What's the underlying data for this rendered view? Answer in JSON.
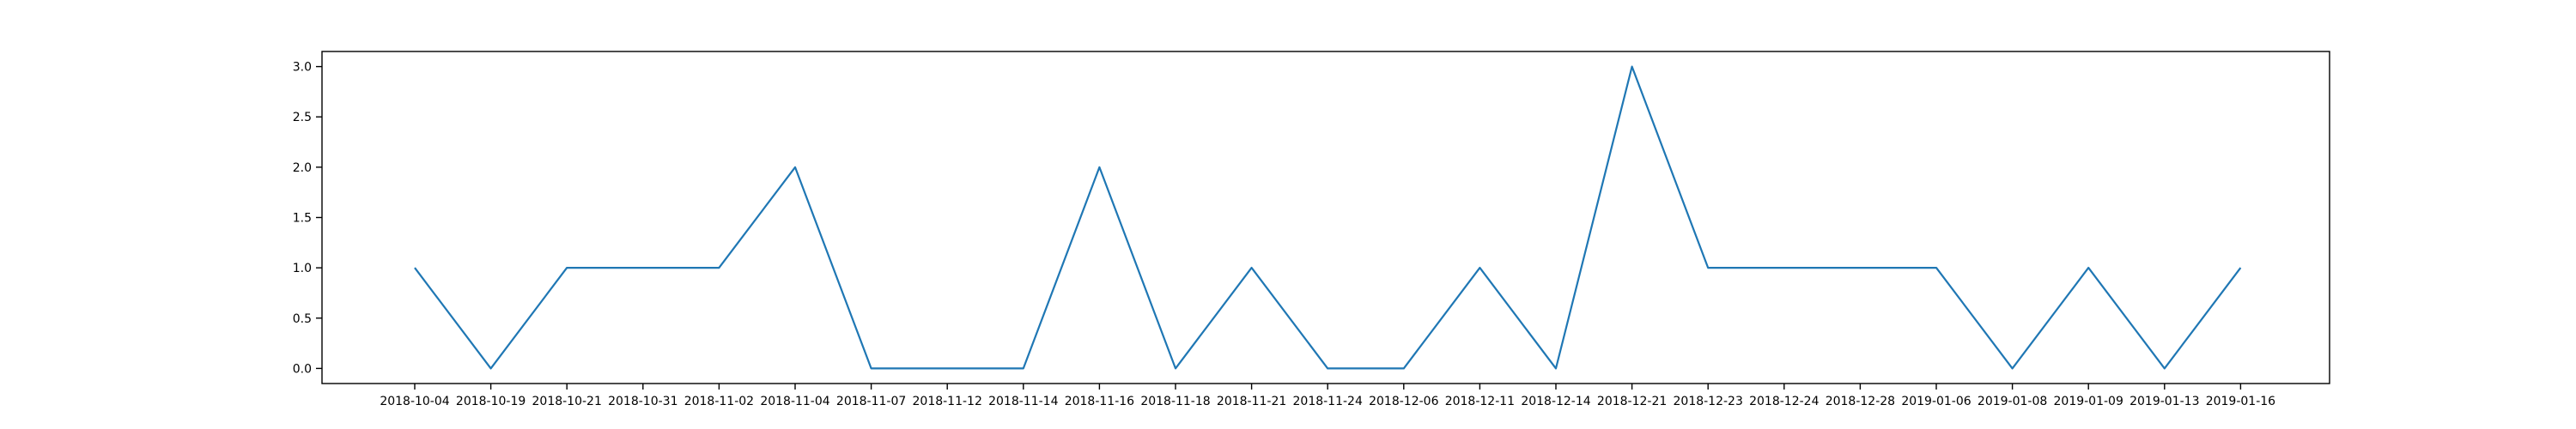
{
  "chart_data": {
    "type": "line",
    "title": "",
    "xlabel": "",
    "ylabel": "",
    "categories": [
      "2018-10-04",
      "2018-10-19",
      "2018-10-21",
      "2018-10-31",
      "2018-11-02",
      "2018-11-04",
      "2018-11-07",
      "2018-11-12",
      "2018-11-14",
      "2018-11-16",
      "2018-11-18",
      "2018-11-21",
      "2018-11-24",
      "2018-12-06",
      "2018-12-11",
      "2018-12-14",
      "2018-12-21",
      "2018-12-23",
      "2018-12-24",
      "2018-12-28",
      "2019-01-06",
      "2019-01-08",
      "2019-01-09",
      "2019-01-13",
      "2019-01-16"
    ],
    "values": [
      1,
      0,
      1,
      1,
      1,
      2,
      0,
      0,
      0,
      2,
      0,
      1,
      0,
      0,
      1,
      0,
      3,
      1,
      1,
      1,
      1,
      0,
      1,
      0,
      1
    ],
    "ylim": [
      -0.15,
      3.15
    ],
    "yticks": [
      "0.0",
      "0.5",
      "1.0",
      "1.5",
      "2.0",
      "2.5",
      "3.0"
    ],
    "grid": false,
    "line_color": "#1f77b4"
  }
}
